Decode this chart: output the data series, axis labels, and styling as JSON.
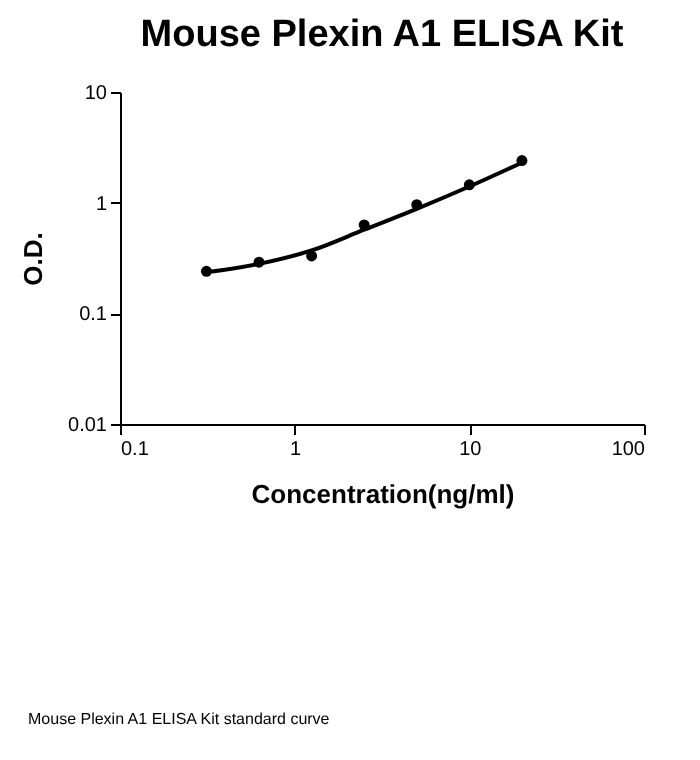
{
  "chart_data": {
    "type": "scatter",
    "title": "Mouse Plexin A1 ELISA Kit",
    "xlabel": "Concentration(ng/ml)",
    "ylabel": "O.D.",
    "log": "xy",
    "grid": false,
    "marker": "circle",
    "x": [
      0.3125,
      0.625,
      1.25,
      2.5,
      5,
      10,
      20
    ],
    "xlim": [
      0.1,
      100
    ],
    "xticks": [
      0.1,
      1,
      10,
      100
    ],
    "ylim": [
      0.01,
      10
    ],
    "yticks": [
      0.01,
      0.1,
      1,
      10
    ],
    "series": [
      {
        "color": "#000000",
        "values": [
          0.24,
          0.29,
          0.33,
          0.63,
          0.96,
          1.45,
          2.4
        ]
      },
      {
        "type": "line",
        "color": "#000000",
        "marker": "none",
        "x": [
          0.3125,
          0.625,
          1.25,
          2.5,
          5,
          10,
          20
        ],
        "values": [
          0.235,
          0.28,
          0.37,
          0.57,
          0.88,
          1.4,
          2.3
        ]
      }
    ],
    "annotations": [
      "Mouse Plexin A1 ELISA Kit standard curve"
    ]
  }
}
